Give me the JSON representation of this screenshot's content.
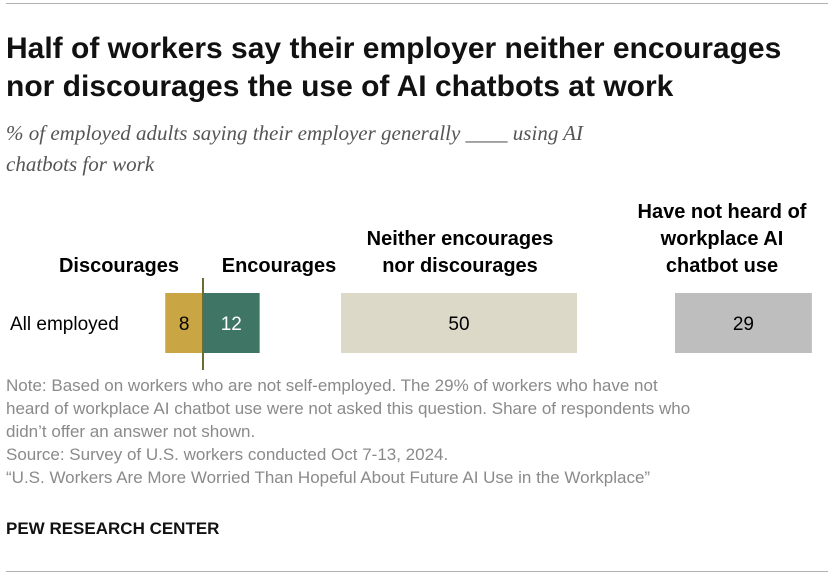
{
  "header": {
    "title_line1": "Half of workers say their employer neither encourages",
    "title_line2": "nor discourages the use of AI chatbots at work",
    "subtitle_line1": "% of employed adults saying their employer generally ____ using AI",
    "subtitle_line2": "chatbots for work"
  },
  "chart_data": {
    "type": "bar",
    "orientation": "horizontal",
    "stacked": false,
    "categories": [
      "All employed"
    ],
    "series": [
      {
        "name": "Discourages",
        "values": [
          8
        ],
        "color": "#c9a544"
      },
      {
        "name": "Encourages",
        "values": [
          12
        ],
        "color": "#3f7565"
      },
      {
        "name": "Neither encourages nor discourages",
        "values": [
          50
        ],
        "color": "#dcd9c8"
      },
      {
        "name": "Have not heard of workplace AI chatbot use",
        "values": [
          29
        ],
        "color": "#bebebe"
      }
    ],
    "column_headers": {
      "discourages": [
        "Discourages"
      ],
      "encourages": [
        "Encourages"
      ],
      "neither": [
        "Neither encourages",
        "nor discourages"
      ],
      "not_heard": [
        "Have not heard of",
        "workplace AI",
        "chatbot use"
      ]
    },
    "divider_color": "#6b6b33",
    "value_text_dark": "#000000",
    "value_text_light": "#ffffff"
  },
  "footer": {
    "note_line1": "Note: Based on workers who are not self-employed. The 29% of workers who have not",
    "note_line2": "heard of workplace AI chatbot use were not asked this question. Share of respondents who",
    "note_line3": "didn’t offer an answer not shown.",
    "source": "Source: Survey of U.S. workers conducted Oct 7-13, 2024.",
    "report": "“U.S. Workers Are More Worried Than Hopeful About Future AI Use in the Workplace”",
    "brand": "PEW RESEARCH CENTER"
  }
}
